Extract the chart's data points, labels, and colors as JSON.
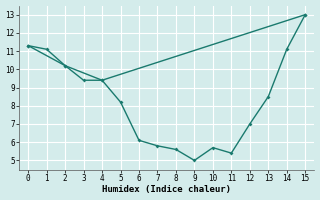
{
  "line1_x": [
    0,
    1,
    2,
    3,
    4,
    5,
    6,
    7,
    8,
    9,
    10,
    11,
    12,
    13,
    14,
    15
  ],
  "line1_y": [
    11.3,
    11.1,
    10.2,
    9.4,
    9.4,
    8.2,
    6.1,
    5.8,
    5.6,
    5.0,
    5.7,
    5.4,
    7.0,
    8.5,
    11.1,
    13.0
  ],
  "line2_x": [
    0,
    2,
    4,
    15
  ],
  "line2_y": [
    11.3,
    10.2,
    9.4,
    13.0
  ],
  "line_color": "#1a7a6e",
  "bg_color": "#d4eceb",
  "grid_color": "#ffffff",
  "xlabel": "Humidex (Indice chaleur)",
  "xlim": [
    -0.5,
    15.5
  ],
  "ylim": [
    4.5,
    13.5
  ],
  "xticks": [
    0,
    1,
    2,
    3,
    4,
    5,
    6,
    7,
    8,
    9,
    10,
    11,
    12,
    13,
    14,
    15
  ],
  "yticks": [
    5,
    6,
    7,
    8,
    9,
    10,
    11,
    12,
    13
  ],
  "figsize": [
    3.2,
    2.0
  ],
  "dpi": 100
}
